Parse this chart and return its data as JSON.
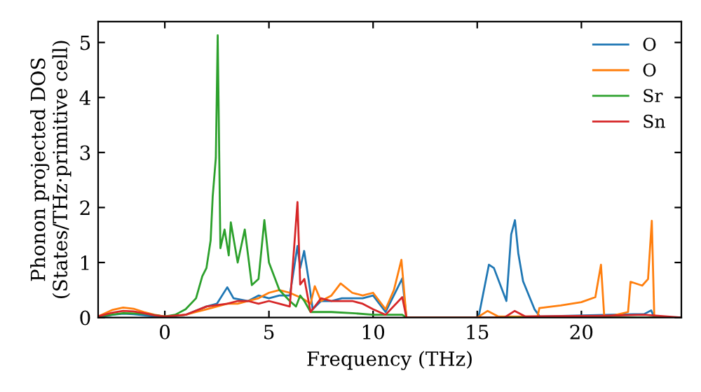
{
  "chart_data": {
    "type": "line",
    "xlabel": "Frequency (THz)",
    "ylabel": "Phonon projected DOS\n(States/THz·primitive cell)",
    "xlim": [
      -3.2,
      24.8
    ],
    "ylim": [
      0,
      5.38
    ],
    "xticks": [
      0,
      5,
      10,
      15,
      20
    ],
    "yticks": [
      0,
      1,
      2,
      3,
      4,
      5
    ],
    "legend": "top right",
    "grid": false,
    "marker": "none",
    "line_style": "solid",
    "series": [
      {
        "name": "O",
        "color": "#1f77b4",
        "x": [
          -3.2,
          -2.5,
          -2,
          -1.5,
          -1,
          -0.5,
          0,
          1,
          2,
          2.5,
          3,
          3.3,
          4,
          4.5,
          5,
          5.5,
          6,
          6.37,
          6.5,
          6.69,
          6.9,
          7.1,
          7.5,
          8,
          8.5,
          9,
          9.5,
          10,
          10.6,
          11.4,
          11.6,
          15.06,
          15.56,
          15.8,
          16.4,
          16.63,
          16.81,
          16.97,
          17.2,
          17.75,
          18,
          22.5,
          23,
          23.35,
          23.5,
          24.8
        ],
        "values": [
          0.0,
          0.05,
          0.07,
          0.06,
          0.04,
          0.02,
          0.0,
          0.05,
          0.2,
          0.25,
          0.55,
          0.35,
          0.3,
          0.4,
          0.35,
          0.4,
          0.4,
          1.3,
          0.9,
          1.21,
          0.7,
          0.15,
          0.3,
          0.3,
          0.35,
          0.35,
          0.35,
          0.4,
          0.1,
          0.71,
          0,
          0,
          0.96,
          0.9,
          0.3,
          1.51,
          1.77,
          1.17,
          0.66,
          0.15,
          0.02,
          0.06,
          0.06,
          0.13,
          0,
          0
        ]
      },
      {
        "name": "O",
        "color": "#ff7f0e",
        "x": [
          -3.2,
          -2.5,
          -2,
          -1.5,
          -1,
          -0.5,
          0,
          1,
          1.5,
          2,
          2.5,
          3,
          3.5,
          4,
          4.5,
          5,
          5.5,
          6,
          6.3,
          6.6,
          7,
          7.2,
          7.5,
          8,
          8.44,
          9,
          9.5,
          10,
          10.6,
          11,
          11.36,
          11.6,
          15,
          15.5,
          16,
          17.9,
          17.98,
          19,
          20,
          20.67,
          20.94,
          21.1,
          22.24,
          22.36,
          22.92,
          23.2,
          23.38,
          23.5,
          24.8
        ],
        "values": [
          0.02,
          0.14,
          0.18,
          0.16,
          0.1,
          0.05,
          0.02,
          0.05,
          0.1,
          0.15,
          0.2,
          0.25,
          0.25,
          0.3,
          0.35,
          0.45,
          0.5,
          0.45,
          0.4,
          0.35,
          0.25,
          0.57,
          0.3,
          0.4,
          0.62,
          0.45,
          0.4,
          0.45,
          0.15,
          0.5,
          1.05,
          0,
          0,
          0.12,
          0.02,
          0.02,
          0.17,
          0.22,
          0.28,
          0.37,
          0.96,
          0,
          0.1,
          0.65,
          0.58,
          0.7,
          1.76,
          0,
          0
        ]
      },
      {
        "name": "Sr",
        "color": "#2ca02c",
        "x": [
          -3.2,
          -2,
          -1,
          0,
          0.5,
          1,
          1.5,
          1.8,
          2,
          2.2,
          2.3,
          2.45,
          2.54,
          2.67,
          2.87,
          3.07,
          3.17,
          3.5,
          3.84,
          4.18,
          4.5,
          4.78,
          5,
          5.5,
          6,
          6.3,
          6.5,
          6.7,
          7,
          8,
          9,
          10,
          11,
          11.4,
          11.6,
          24.8
        ],
        "values": [
          0.02,
          0.08,
          0.07,
          0.02,
          0.05,
          0.15,
          0.35,
          0.75,
          0.9,
          1.4,
          2.2,
          2.9,
          5.13,
          1.26,
          1.6,
          1.13,
          1.73,
          1.0,
          1.6,
          0.59,
          0.7,
          1.77,
          1.0,
          0.5,
          0.3,
          0.2,
          0.4,
          0.3,
          0.1,
          0.1,
          0.08,
          0.05,
          0.05,
          0.05,
          0,
          0
        ]
      },
      {
        "name": "Sn",
        "color": "#d62728",
        "x": [
          -3.2,
          -2.5,
          -2,
          -1.5,
          -1,
          -0.5,
          0,
          1,
          2,
          3,
          3.5,
          4,
          4.5,
          5,
          5.5,
          6,
          6.37,
          6.5,
          6.7,
          7,
          7.5,
          8,
          9,
          9.5,
          10,
          10.6,
          11.4,
          11.6,
          16.3,
          16.8,
          17.3,
          20.9,
          23,
          24.8
        ],
        "values": [
          0.02,
          0.09,
          0.12,
          0.11,
          0.08,
          0.04,
          0.02,
          0.05,
          0.2,
          0.25,
          0.3,
          0.3,
          0.25,
          0.3,
          0.25,
          0.2,
          2.1,
          0.6,
          0.7,
          0.1,
          0.35,
          0.3,
          0.3,
          0.25,
          0.15,
          0.05,
          0.37,
          0,
          0,
          0.12,
          0.02,
          0.03,
          0.05,
          0
        ]
      }
    ]
  }
}
